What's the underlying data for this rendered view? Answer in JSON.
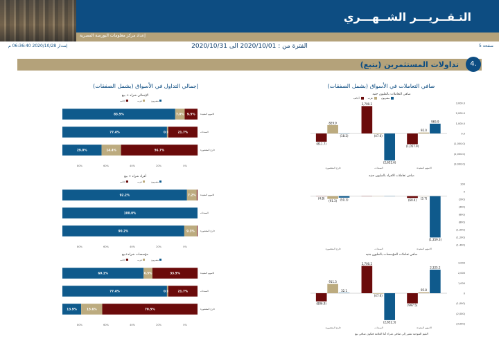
{
  "header": {
    "title": "التـقــريـــر الشــهـــري",
    "subtitle": "إعداد مركز معلومات البورصة المصرية"
  },
  "meta": {
    "page_label": "صفحة 5",
    "issue_label": "إصدار 2020/10/28 06:36:40 م",
    "period": "الفترة من : 2020/10/01 الى 2020/10/31"
  },
  "section": {
    "number": "4.",
    "title": "تداولات المستثمرين  (يتبع)"
  },
  "left_title": "صافي التعاملات في الأسواق (بشمل الصفقات)",
  "right_title": "إجمالي التداول في الأسواق (بشمل الصفقات)",
  "colors": {
    "egyptians": "#0f5a8c",
    "arabs": "#bcab7f",
    "foreigners": "#6b0b0b"
  },
  "legend": {
    "egyptians": "مصريون",
    "arabs": "عرب",
    "foreigners": "أجانب"
  },
  "footnote": "القيم الموجبة تشير إلى صافي شراء أما العلامة فتكون صافي بيع",
  "chart_data": [
    {
      "type": "bar",
      "title": "صافي التعاملات بالمليون جنيه",
      "categories": [
        "الاسهم المقيدة",
        "السندات",
        "خارج المقصورة"
      ],
      "series": [
        {
          "name": "مصريون",
          "values": [
            965.9,
            -2652.6,
            -18.2
          ]
        },
        {
          "name": "عرب",
          "values": [
            92.0,
            -47.6,
            829.9
          ]
        },
        {
          "name": "أجانب",
          "values": [
            -1057.9,
            2700.2,
            -811.7
          ]
        }
      ],
      "ylim": [
        -3000,
        3000
      ],
      "yticks": [
        "3,000.0",
        "2,000.0",
        "1,000.0",
        "0.0",
        "(1,000.0)",
        "(2,000.0)",
        "(3,000.0)"
      ],
      "labels": [
        [
          "965.9",
          "92.0",
          "(1,057.9)"
        ],
        [
          "(2,652.6)",
          "(47.6)",
          "2,700.2"
        ],
        [
          "(18.2)",
          "829.9",
          "(811.7)"
        ]
      ]
    },
    {
      "type": "bar",
      "title": "صافي تعاملات الافراد بالمليون جنيه",
      "categories": [
        "الاسهم المقيدة",
        "السندات",
        "خارج المقصورة"
      ],
      "series": [
        {
          "name": "مصريون",
          "values": [
            -1359.3,
            0,
            -50.3
          ]
        },
        {
          "name": "عرب",
          "values": [
            -3.7,
            0,
            -91.3
          ]
        },
        {
          "name": "أجانب",
          "values": [
            -60.4,
            0,
            -4.8
          ]
        }
      ],
      "ylim": [
        -1600,
        400
      ],
      "yticks": [
        "200",
        "0",
        "(200)",
        "(400)",
        "(600)",
        "(800)",
        "(1,000)",
        "(1,200)",
        "(1,400)"
      ],
      "labels": [
        [
          "(1,359.3)",
          "(3.7)",
          "(60.4)"
        ],
        [
          "",
          "",
          ""
        ],
        [
          "(50.3)",
          "(91.3)",
          "(4.8)"
        ]
      ]
    },
    {
      "type": "bar",
      "title": "صافي تعاملات المؤسسات بالمليون جنيه",
      "categories": [
        "الاسهم المقيدة",
        "السندات",
        "خارج المقصورة"
      ],
      "series": [
        {
          "name": "مصريون",
          "values": [
            2325.2,
            -2652.3,
            32.1
          ]
        },
        {
          "name": "عرب",
          "values": [
            95.8,
            -47.6,
            911.3
          ]
        },
        {
          "name": "أجانب",
          "values": [
            -997.5,
            2700.2,
            -806.9
          ]
        }
      ],
      "ylim": [
        -3000,
        3000
      ],
      "yticks": [
        "3,000",
        "2,000",
        "1,000",
        "0",
        "(1,000)",
        "(2,000)",
        "(3,000)"
      ],
      "labels": [
        [
          "2,325.2",
          "95.8",
          "(997.5)"
        ],
        [
          "(2,652.3)",
          "(47.6)",
          "2,700.2"
        ],
        [
          "32.1",
          "911.3",
          "(806.9)"
        ]
      ]
    },
    {
      "type": "bar",
      "subtype": "stacked-100",
      "title": "الإجمالي شراء + بيع",
      "categories": [
        "الاسهم المقيدة",
        "السندات",
        "خارج المقصورة"
      ],
      "series": [
        {
          "name": "مصريون",
          "values": [
            83.5,
            77.4,
            29.0
          ]
        },
        {
          "name": "عرب",
          "values": [
            7.0,
            0.9,
            14.4
          ]
        },
        {
          "name": "أجانب",
          "values": [
            9.5,
            21.7,
            56.7
          ]
        }
      ],
      "labels": [
        [
          "83.5%",
          "7.0%",
          "9.5%"
        ],
        [
          "77.4%",
          "0.9%",
          "21.7%"
        ],
        [
          "29.0%",
          "14.4%",
          "56.7%"
        ]
      ]
    },
    {
      "type": "bar",
      "subtype": "stacked-100",
      "title": "أفراد شراء + بيع",
      "categories": [
        "الاسهم المقيدة",
        "السندات",
        "خارج المقصورة"
      ],
      "series": [
        {
          "name": "مصريون",
          "values": [
            92.2,
            100.0,
            90.2
          ]
        },
        {
          "name": "عرب",
          "values": [
            7.2,
            0,
            9.3
          ]
        },
        {
          "name": "أجانب",
          "values": [
            0.6,
            0,
            0.5
          ]
        }
      ],
      "labels": [
        [
          "92.2%",
          "7.2%",
          ""
        ],
        [
          "100.0%",
          "",
          ""
        ],
        [
          "90.2%",
          "9.3%",
          ""
        ]
      ]
    },
    {
      "type": "bar",
      "subtype": "stacked-100",
      "title": "مؤسسات شراء+بيع",
      "categories": [
        "الاسهم المقيدة",
        "السندات",
        "خارج المقصورة"
      ],
      "series": [
        {
          "name": "مصريون",
          "values": [
            60.1,
            77.4,
            13.9
          ]
        },
        {
          "name": "عرب",
          "values": [
            6.5,
            0.9,
            15.6
          ]
        },
        {
          "name": "أجانب",
          "values": [
            33.5,
            21.7,
            70.5
          ]
        }
      ],
      "labels": [
        [
          "60.1%",
          "6.5%",
          "33.5%"
        ],
        [
          "77.4%",
          "0.9%",
          "21.7%"
        ],
        [
          "13.9%",
          "15.6%",
          "70.5%"
        ]
      ]
    }
  ],
  "xticks_pct": [
    "0%",
    "20%",
    "40%",
    "60%",
    "80%"
  ]
}
